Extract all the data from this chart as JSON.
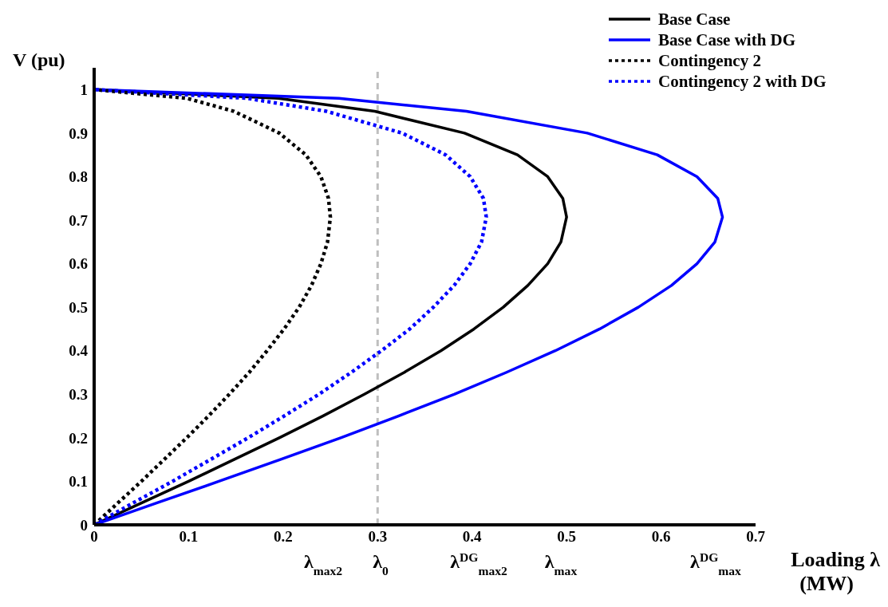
{
  "chart_data": {
    "type": "line",
    "xlabel": "Loading λ (MW)",
    "ylabel": "V (pu)",
    "xlim": [
      0,
      0.7
    ],
    "xticks": [
      0,
      0.1,
      0.2,
      0.3,
      0.4,
      0.5,
      0.6,
      0.7
    ],
    "grid": false,
    "ylim": [
      0,
      1.05
    ],
    "yticks": [
      0,
      0.1,
      0.2,
      0.3,
      0.4,
      0.5,
      0.6,
      0.7,
      0.8,
      0.9,
      1
    ],
    "legend": "top right",
    "marker": "none",
    "series": [
      {
        "name": "Base Case",
        "color": "#000000",
        "line_style": "solid",
        "x": [
          0,
          0.05,
          0.1,
          0.148,
          0.196,
          0.242,
          0.286,
          0.328,
          0.367,
          0.402,
          0.433,
          0.459,
          0.48,
          0.494,
          0.5,
          0.496,
          0.48,
          0.448,
          0.392,
          0.297,
          0.195,
          0
        ],
        "values": [
          0,
          0.05,
          0.1,
          0.15,
          0.2,
          0.25,
          0.3,
          0.35,
          0.4,
          0.45,
          0.5,
          0.55,
          0.6,
          0.65,
          0.707,
          0.75,
          0.8,
          0.85,
          0.9,
          0.95,
          0.98,
          1
        ]
      },
      {
        "name": "Base Case with DG",
        "color": "#0000ff",
        "line_style": "solid",
        "x": [
          0,
          0.066,
          0.132,
          0.197,
          0.261,
          0.322,
          0.381,
          0.436,
          0.488,
          0.535,
          0.576,
          0.611,
          0.638,
          0.657,
          0.665,
          0.66,
          0.638,
          0.596,
          0.522,
          0.394,
          0.259,
          0
        ],
        "values": [
          0,
          0.05,
          0.1,
          0.15,
          0.2,
          0.25,
          0.3,
          0.35,
          0.4,
          0.45,
          0.5,
          0.55,
          0.6,
          0.65,
          0.707,
          0.75,
          0.8,
          0.85,
          0.9,
          0.95,
          0.98,
          1
        ]
      },
      {
        "name": "Contingency 2",
        "color": "#000000",
        "line_style": "dotted",
        "x": [
          0,
          0.025,
          0.05,
          0.074,
          0.098,
          0.121,
          0.143,
          0.164,
          0.183,
          0.201,
          0.217,
          0.23,
          0.24,
          0.247,
          0.25,
          0.248,
          0.24,
          0.224,
          0.196,
          0.148,
          0.098,
          0
        ],
        "values": [
          0,
          0.05,
          0.1,
          0.15,
          0.2,
          0.25,
          0.3,
          0.35,
          0.4,
          0.45,
          0.5,
          0.55,
          0.6,
          0.65,
          0.707,
          0.75,
          0.8,
          0.85,
          0.9,
          0.95,
          0.98,
          1
        ]
      },
      {
        "name": "Contingency 2 with DG",
        "color": "#0000ff",
        "line_style": "dotted",
        "x": [
          0,
          0.041,
          0.083,
          0.123,
          0.163,
          0.201,
          0.238,
          0.272,
          0.304,
          0.334,
          0.359,
          0.381,
          0.398,
          0.41,
          0.415,
          0.412,
          0.398,
          0.372,
          0.326,
          0.246,
          0.162,
          0
        ],
        "values": [
          0,
          0.05,
          0.1,
          0.15,
          0.2,
          0.25,
          0.3,
          0.35,
          0.4,
          0.45,
          0.5,
          0.55,
          0.6,
          0.65,
          0.707,
          0.75,
          0.8,
          0.85,
          0.9,
          0.95,
          0.98,
          1
        ]
      }
    ],
    "ref_lines": [
      {
        "axis": "x",
        "value": 0.3,
        "color": "#bfbfbf",
        "line_style": "dashed"
      }
    ],
    "annotations": [
      "λ$_{max2}$",
      "λ$_{0}$",
      "λ$^{DG}$$_{max2}$",
      "λ$_{max}$",
      "λ$^{DG}$$_{max}$"
    ]
  }
}
